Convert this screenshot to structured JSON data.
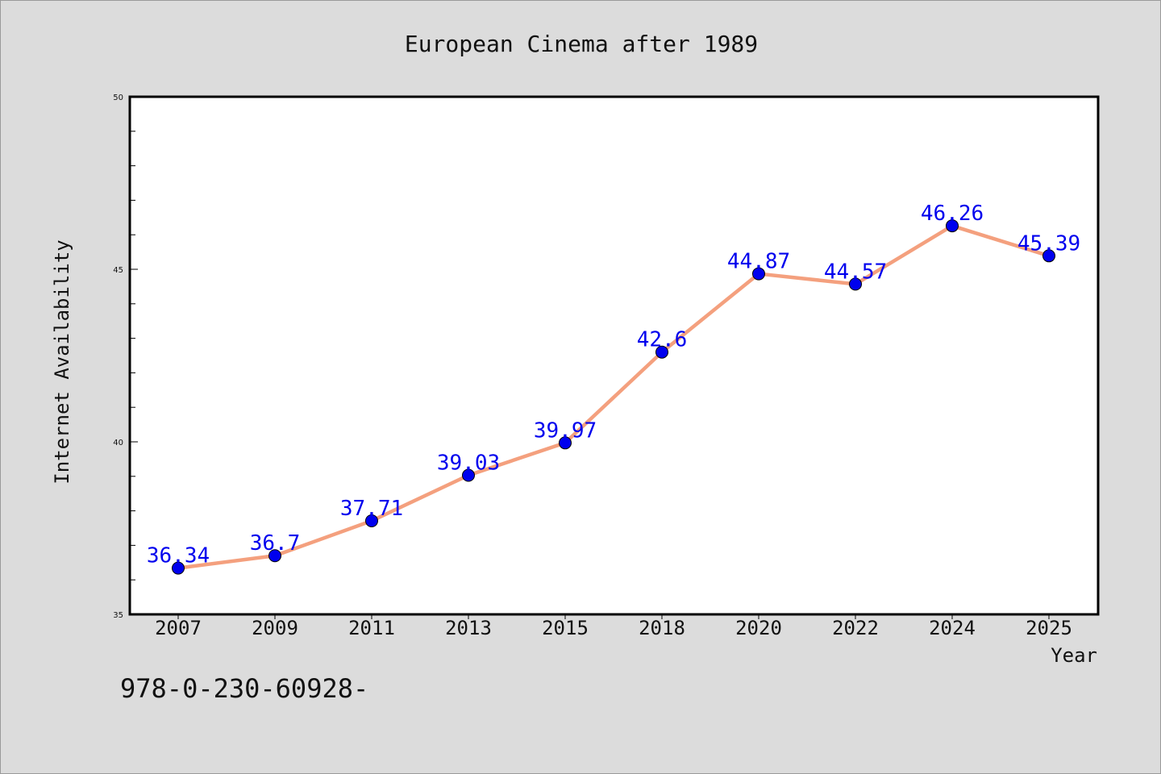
{
  "chart_data": {
    "type": "line",
    "title": "European Cinema after 1989",
    "xlabel": "Year",
    "ylabel": "Internet Availability",
    "categories": [
      "2007",
      "2009",
      "2011",
      "2013",
      "2015",
      "2018",
      "2020",
      "2022",
      "2024",
      "2025"
    ],
    "series": [
      {
        "values": [
          36.34,
          36.7,
          37.71,
          39.03,
          39.97,
          42.6,
          44.87,
          44.57,
          46.26,
          45.39
        ],
        "line_color": "#f4a07e",
        "marker_color": "#0000ee",
        "label_color": "#0000ee"
      }
    ],
    "ylim": [
      35,
      50
    ],
    "y_major_ticks": [
      35,
      40,
      45,
      50
    ],
    "y_minor_step": 1,
    "grid": false,
    "legend": "none",
    "plot_background": "#ffffff",
    "figure_background": "#dcdcdc"
  },
  "footer": {
    "text": "978-0-230-60928-"
  }
}
